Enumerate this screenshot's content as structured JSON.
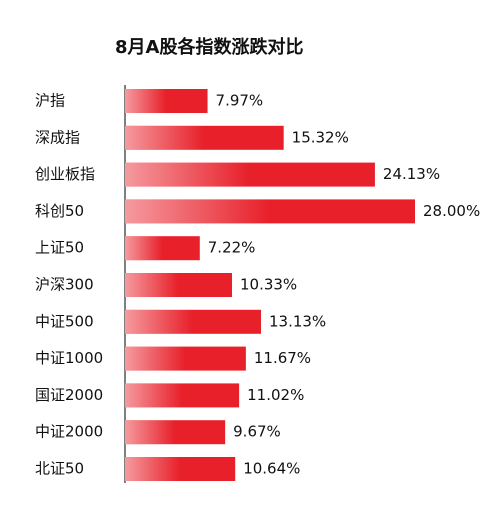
{
  "chart_data": {
    "type": "bar",
    "orientation": "horizontal",
    "title": "8月A股各指数涨跌对比",
    "categories": [
      "沪指",
      "深成指",
      "创业板指",
      "科创50",
      "上证50",
      "沪深300",
      "中证500",
      "中证1000",
      "国证2000",
      "中证2000",
      "北证50"
    ],
    "values": [
      7.97,
      15.32,
      24.13,
      28.0,
      7.22,
      10.33,
      13.13,
      11.67,
      11.02,
      9.67,
      10.64
    ],
    "value_labels": [
      "7.97%",
      "15.32%",
      "24.13%",
      "28.00%",
      "7.22%",
      "10.33%",
      "13.13%",
      "11.67%",
      "11.02%",
      "9.67%",
      "10.64%"
    ],
    "color": "#e8202a"
  }
}
